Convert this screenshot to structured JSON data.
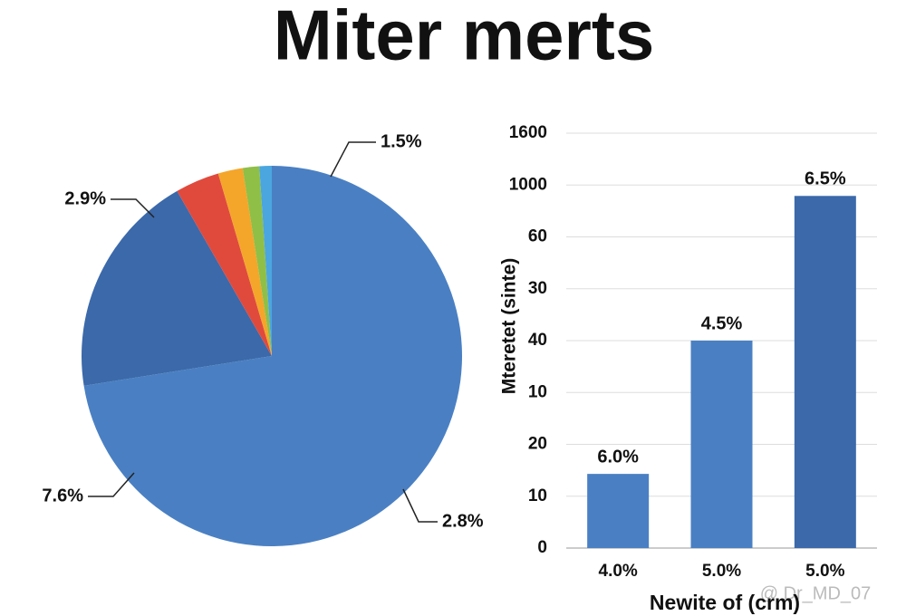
{
  "title": "Miter merts",
  "watermark": "@ Dr_MD_07",
  "chart_data": [
    {
      "type": "pie",
      "values": [
        72.5,
        19.2,
        3.75,
        2.1,
        1.4,
        1.05
      ],
      "colors": [
        "#4a80c3",
        "#3b69aa",
        "#e04a3d",
        "#f4a62a",
        "#8fbf47",
        "#4ba6df"
      ],
      "annotations": [
        "1.5%",
        "2.9%",
        "7.6%",
        "2.8%"
      ]
    },
    {
      "type": "bar",
      "categories": [
        "4.0%",
        "5.0%",
        "5.0%"
      ],
      "values": [
        1.43,
        4.0,
        6.79
      ],
      "colors": [
        "#4a80c3",
        "#4a80c3",
        "#3b69aa"
      ],
      "annotations": [
        "6.0%",
        "4.5%",
        "6.5%"
      ],
      "x_label": "Newite of (crm)",
      "y_label": "Mteretet (sinte)",
      "ylim": [
        0,
        8
      ],
      "yticks": [
        {
          "value": 0,
          "label": "0"
        },
        {
          "value": 1,
          "label": "10"
        },
        {
          "value": 2,
          "label": "20"
        },
        {
          "value": 3,
          "label": "10"
        },
        {
          "value": 4,
          "label": "40"
        },
        {
          "value": 5,
          "label": "30"
        },
        {
          "value": 6,
          "label": "60"
        },
        {
          "value": 7,
          "label": "1000"
        },
        {
          "value": 8,
          "label": "1600"
        }
      ],
      "grid": true
    }
  ]
}
